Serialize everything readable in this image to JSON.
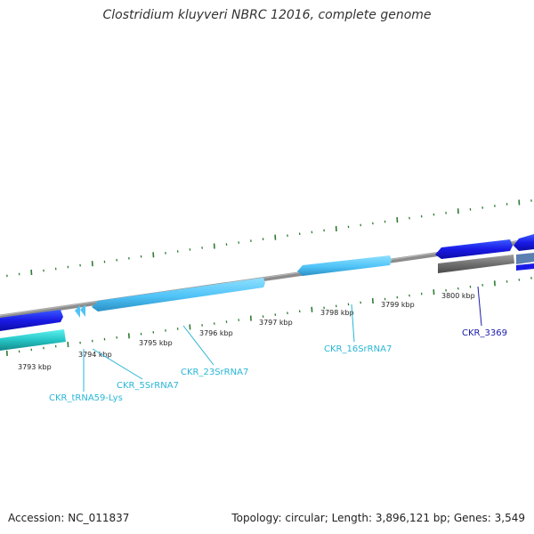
{
  "title": "Clostridium kluyveri NBRC 12016, complete genome",
  "footer": {
    "accession": "Accession: NC_011837",
    "summary": "Topology: circular; Length: 3,896,121 bp; Genes: 3,549"
  },
  "ruler": {
    "ticks": [
      "3793 kbp",
      "3794 kbp",
      "3795 kbp",
      "3796 kbp",
      "3797 kbp",
      "3798 kbp",
      "3799 kbp",
      "3800 kbp"
    ]
  },
  "gene_labels": {
    "trna": "CKR_tRNA59-Lys",
    "rrna_5s": "CKR_5SrRNA7",
    "rrna_23s": "CKR_23SrRNA7",
    "rrna_16s": "CKR_16SrRNA7",
    "cds": "CKR_3369"
  },
  "colors": {
    "backbone": "#8c8c8c",
    "tick_green": "#2e7d32",
    "cds_blue": "#1a1ae6",
    "rrna_blue": "#4fc3f7",
    "trna_teal": "#26c6c6",
    "gray_feature": "#707070",
    "label_cyan": "#29b6d6",
    "label_navy": "#1a1aa8"
  }
}
